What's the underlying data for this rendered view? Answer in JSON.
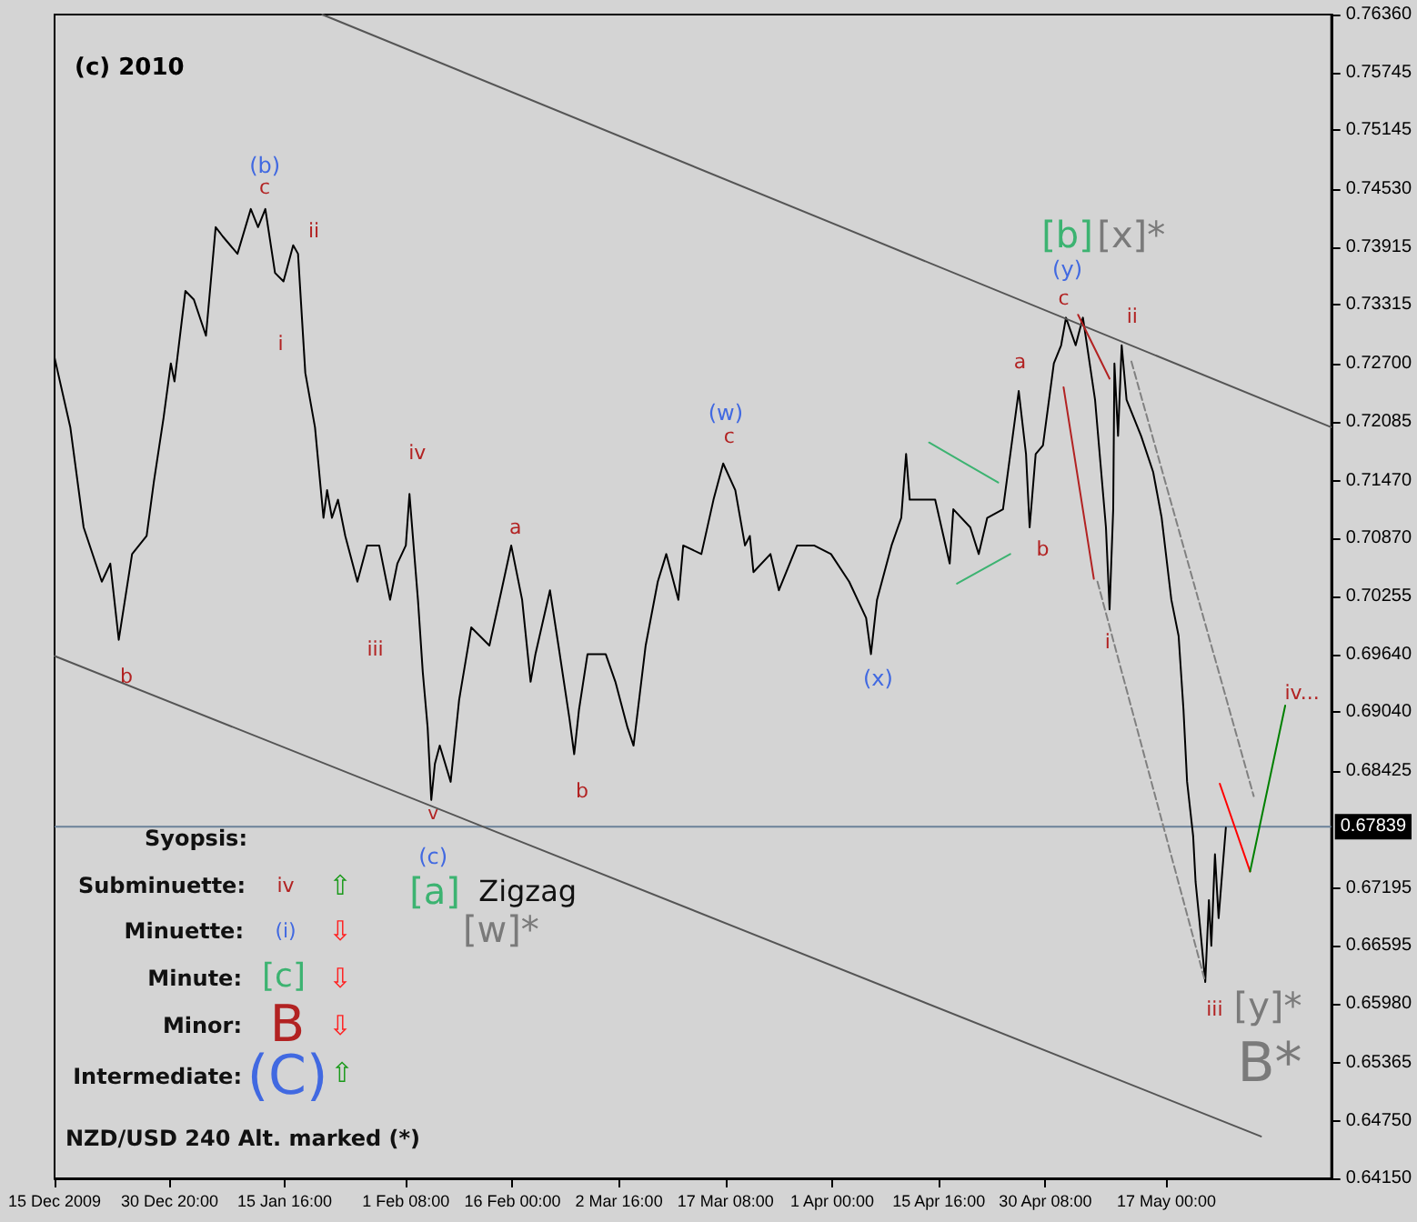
{
  "chart_data": {
    "type": "line",
    "title": "(c) 2010",
    "xlim": [
      "2009-12-15T00:00",
      "2010-06-08T16:00"
    ],
    "xticks": [
      {
        "value": "2009-12-15T00:00",
        "label": "15 Dec 2009"
      },
      {
        "value": "2009-12-30T20:00",
        "label": "30 Dec 20:00"
      },
      {
        "value": "2010-01-15T16:00",
        "label": "15 Jan 16:00"
      },
      {
        "value": "2010-02-01T08:00",
        "label": "1 Feb 08:00"
      },
      {
        "value": "2010-02-16T00:00",
        "label": "16 Feb 00:00"
      },
      {
        "value": "2010-03-02T16:00",
        "label": "2 Mar 16:00"
      },
      {
        "value": "2010-03-17T08:00",
        "label": "17 Mar 08:00"
      },
      {
        "value": "2010-04-01T00:00",
        "label": "1 Apr 00:00"
      },
      {
        "value": "2010-04-15T16:00",
        "label": "15 Apr 16:00"
      },
      {
        "value": "2010-04-30T08:00",
        "label": "30 Apr 08:00"
      },
      {
        "value": "2010-05-17T00:00",
        "label": "17 May 00:00"
      }
    ],
    "ylim": [
      0.6415,
      0.7636
    ],
    "yticks": [
      {
        "value": 0.7636,
        "label": "0.76360"
      },
      {
        "value": 0.75745,
        "label": "0.75745"
      },
      {
        "value": 0.75145,
        "label": "0.75145"
      },
      {
        "value": 0.7453,
        "label": "0.74530"
      },
      {
        "value": 0.73915,
        "label": "0.73915"
      },
      {
        "value": 0.73315,
        "label": "0.73315"
      },
      {
        "value": 0.727,
        "label": "0.72700"
      },
      {
        "value": 0.72085,
        "label": "0.72085"
      },
      {
        "value": 0.7147,
        "label": "0.71470"
      },
      {
        "value": 0.7087,
        "label": "0.70870"
      },
      {
        "value": 0.70255,
        "label": "0.70255"
      },
      {
        "value": 0.6964,
        "label": "0.69640"
      },
      {
        "value": 0.6904,
        "label": "0.69040"
      },
      {
        "value": 0.68425,
        "label": "0.68425"
      },
      {
        "value": 0.67195,
        "label": "0.67195"
      },
      {
        "value": 0.66595,
        "label": "0.66595"
      },
      {
        "value": 0.6598,
        "label": "0.65980"
      },
      {
        "value": 0.65365,
        "label": "0.65365"
      },
      {
        "value": 0.6475,
        "label": "0.64750"
      },
      {
        "value": 0.6415,
        "label": "0.64150"
      }
    ],
    "grid": false,
    "ref_lines": [
      {
        "axis": "y",
        "value": 0.67839,
        "label": "0.67839",
        "color": "#6b8299"
      }
    ],
    "series": [
      {
        "color": "#000000",
        "line_style": "solid",
        "x": [
          "2009-12-15T00:00",
          "2009-12-17T04:00",
          "2009-12-19T00:00",
          "2009-12-21T12:00",
          "2009-12-22T16:00",
          "2009-12-23T20:00",
          "2009-12-25T16:00",
          "2009-12-27T16:00",
          "2009-12-28T16:00",
          "2009-12-30T00:00",
          "2009-12-31T00:00",
          "2009-12-31T12:00",
          "2010-01-02T00:00",
          "2010-01-03T04:00",
          "2010-01-04T20:00",
          "2010-01-06T04:00",
          "2010-01-07T04:00",
          "2010-01-09T04:00",
          "2010-01-11T00:00",
          "2010-01-12T00:00",
          "2010-01-13T00:00",
          "2010-01-14T08:00",
          "2010-01-15T12:00",
          "2010-01-16T20:00",
          "2010-01-17T12:00",
          "2010-01-18T12:00",
          "2010-01-19T20:00",
          "2010-01-21T00:00",
          "2010-01-21T12:00",
          "2010-01-22T04:00",
          "2010-01-23T00:00",
          "2010-01-24T00:00",
          "2010-01-25T16:00",
          "2010-01-27T00:00",
          "2010-01-28T16:00",
          "2010-01-30T04:00",
          "2010-01-31T04:00",
          "2010-02-01T08:00",
          "2010-02-01T20:00",
          "2010-02-03T00:00",
          "2010-02-03T16:00",
          "2010-02-04T08:00",
          "2010-02-04T20:00",
          "2010-02-05T08:00",
          "2010-02-06T00:00",
          "2010-02-07T12:00",
          "2010-02-08T16:00",
          "2010-02-10T08:00",
          "2010-02-12T20:00",
          "2010-02-14T12:00",
          "2010-02-15T20:00",
          "2010-02-17T08:00",
          "2010-02-18T12:00",
          "2010-02-19T04:00",
          "2010-02-21T04:00",
          "2010-02-22T08:00",
          "2010-02-23T20:00",
          "2010-02-24T12:00",
          "2010-02-25T04:00",
          "2010-02-26T08:00",
          "2010-02-28T20:00",
          "2010-03-02T04:00",
          "2010-03-03T20:00",
          "2010-03-04T16:00",
          "2010-03-06T08:00",
          "2010-03-08T00:00",
          "2010-03-09T04:00",
          "2010-03-10T20:00",
          "2010-03-11T12:00",
          "2010-03-14T00:00",
          "2010-03-15T16:00",
          "2010-03-17T00:00",
          "2010-03-18T16:00",
          "2010-03-20T00:00",
          "2010-03-20T16:00",
          "2010-03-21T04:00",
          "2010-03-23T12:00",
          "2010-03-24T16:00",
          "2010-03-27T04:00",
          "2010-03-29T12:00",
          "2010-03-31T20:00",
          "2010-04-03T08:00",
          "2010-04-05T16:00",
          "2010-04-06T08:00",
          "2010-04-07T04:00",
          "2010-04-09T04:00",
          "2010-04-10T12:00",
          "2010-04-11T04:00",
          "2010-04-11T16:00",
          "2010-04-13T08:00",
          "2010-04-15T04:00",
          "2010-04-17T04:00",
          "2010-04-17T16:00",
          "2010-04-20T00:00",
          "2010-04-21T04:00",
          "2010-04-22T08:00",
          "2010-04-24T12:00",
          "2010-04-26T00:00",
          "2010-04-26T16:00",
          "2010-04-27T16:00",
          "2010-04-28T04:00",
          "2010-04-29T00:00",
          "2010-04-30T00:00",
          "2010-05-01T12:00",
          "2010-05-02T12:00",
          "2010-05-03T04:00",
          "2010-05-04T12:00",
          "2010-05-05T12:00",
          "2010-05-07T04:00",
          "2010-05-08T16:00",
          "2010-05-09T04:00",
          "2010-05-09T16:00",
          "2010-05-09T20:00",
          "2010-05-10T08:00",
          "2010-05-10T20:00",
          "2010-05-11T12:00",
          "2010-05-13T12:00",
          "2010-05-15T04:00",
          "2010-05-16T08:00",
          "2010-05-17T16:00",
          "2010-05-18T16:00",
          "2010-05-19T08:00",
          "2010-05-19T20:00",
          "2010-05-20T16:00",
          "2010-05-21T00:00",
          "2010-05-21T12:00",
          "2010-05-22T08:00",
          "2010-05-22T20:00",
          "2010-05-23T04:00",
          "2010-05-23T16:00",
          "2010-05-24T04:00",
          "2010-05-24T16:00",
          "2010-05-25T04:00"
        ],
        "values": [
          0.7276,
          0.7203,
          0.7098,
          0.7041,
          0.706,
          0.698,
          0.707,
          0.7089,
          0.7146,
          0.7213,
          0.727,
          0.7251,
          0.7346,
          0.7337,
          0.7299,
          0.7413,
          0.7403,
          0.7385,
          0.7432,
          0.7413,
          0.7432,
          0.7365,
          0.7356,
          0.7394,
          0.7385,
          0.726,
          0.7203,
          0.7108,
          0.7137,
          0.7108,
          0.7127,
          0.7089,
          0.7041,
          0.7079,
          0.7079,
          0.7022,
          0.706,
          0.7079,
          0.7133,
          0.7022,
          0.6946,
          0.6888,
          0.6812,
          0.685,
          0.6869,
          0.6831,
          0.6917,
          0.6993,
          0.6974,
          0.7032,
          0.7079,
          0.7022,
          0.6936,
          0.6965,
          0.7032,
          0.6974,
          0.6898,
          0.686,
          0.6907,
          0.6965,
          0.6965,
          0.6936,
          0.6888,
          0.6869,
          0.6974,
          0.7041,
          0.707,
          0.7022,
          0.7079,
          0.707,
          0.7127,
          0.7165,
          0.7137,
          0.7079,
          0.7089,
          0.7051,
          0.707,
          0.7032,
          0.7079,
          0.7079,
          0.707,
          0.7041,
          0.7003,
          0.6965,
          0.7022,
          0.7079,
          0.7108,
          0.7175,
          0.7127,
          0.7127,
          0.7127,
          0.706,
          0.7117,
          0.7098,
          0.707,
          0.7108,
          0.7117,
          0.7203,
          0.7241,
          0.7175,
          0.7098,
          0.7175,
          0.7184,
          0.727,
          0.7289,
          0.7318,
          0.7289,
          0.7318,
          0.7232,
          0.7098,
          0.7012,
          0.7117,
          0.727,
          0.7194,
          0.7289,
          0.7232,
          0.7194,
          0.7156,
          0.7108,
          0.7022,
          0.6984,
          0.6907,
          0.6831,
          0.6774,
          0.6726,
          0.6688,
          0.6621,
          0.6707,
          0.6659,
          0.6755,
          0.6688,
          0.6736,
          0.6783
        ]
      },
      {
        "color": "#555555",
        "line_style": "solid",
        "x": [
          "2010-01-20T20:00",
          "2010-06-08T16:00"
        ],
        "values": [
          0.7636,
          0.7203
        ]
      },
      {
        "color": "#555555",
        "line_style": "solid",
        "x": [
          "2009-12-15T00:00",
          "2010-05-30T00:00"
        ],
        "values": [
          0.6963,
          0.6459
        ]
      },
      {
        "color": "#3cb371",
        "line_style": "solid",
        "x": [
          "2010-04-14T08:00",
          "2010-04-23T20:00"
        ],
        "values": [
          0.7187,
          0.7145
        ]
      },
      {
        "color": "#3cb371",
        "line_style": "solid",
        "x": [
          "2010-04-18T04:00",
          "2010-04-25T12:00"
        ],
        "values": [
          0.7039,
          0.707
        ]
      },
      {
        "color": "#b22222",
        "line_style": "solid",
        "x": [
          "2010-05-04T20:00",
          "2010-05-09T04:00"
        ],
        "values": [
          0.7321,
          0.7254
        ]
      },
      {
        "color": "#b22222",
        "line_style": "solid",
        "x": [
          "2010-05-02T20:00",
          "2010-05-07T00:00"
        ],
        "values": [
          0.7245,
          0.7044
        ]
      },
      {
        "color": "#808080",
        "line_style": "dashed",
        "x": [
          "2010-05-12T04:00",
          "2010-05-29T00:00"
        ],
        "values": [
          0.7272,
          0.6816
        ]
      },
      {
        "color": "#808080",
        "line_style": "dashed",
        "x": [
          "2010-05-07T12:00",
          "2010-05-22T08:00"
        ],
        "values": [
          0.7041,
          0.6621
        ]
      },
      {
        "color": "#ff0000",
        "line_style": "solid",
        "x": [
          "2010-05-24T08:00",
          "2010-05-28T12:00"
        ],
        "values": [
          0.6829,
          0.6737
        ]
      },
      {
        "color": "#008000",
        "line_style": "solid",
        "x": [
          "2010-05-28T12:00",
          "2010-06-02T08:00"
        ],
        "values": [
          0.6737,
          0.6911
        ]
      }
    ],
    "annotations": [
      "(b)",
      "c",
      "ii",
      "i",
      "b",
      "iv",
      "iii",
      "v",
      "(c)",
      "a",
      "b",
      "(w)",
      "c",
      "(x)",
      "a",
      "b",
      "c",
      "(y)",
      "[b]",
      "[x]*",
      "ii",
      "i",
      "iii",
      "[y]*",
      "B*",
      "iv...",
      "[a]",
      "Zigzag",
      "[w]*",
      "Syopsis:",
      "Subminuette:",
      "iv",
      "⇧",
      "Minuette:",
      "(i)",
      "⇩",
      "Minute:",
      "[c]",
      "⇩",
      "Minor:",
      "B",
      "⇩",
      "Intermediate:",
      "(C)",
      "⇧",
      "NZD/USD 240 Alt. marked (*)"
    ]
  }
}
